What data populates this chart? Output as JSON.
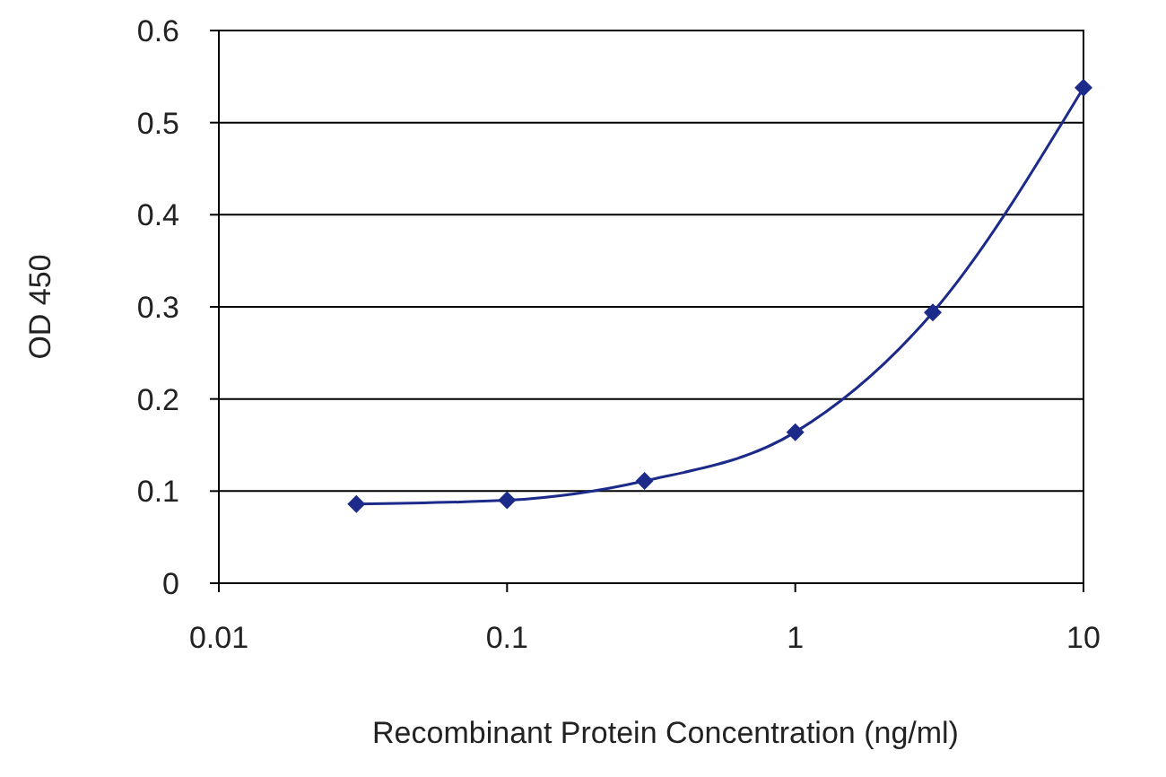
{
  "chart_data": {
    "type": "line",
    "xlabel": "Recombinant Protein Concentration (ng/ml)",
    "ylabel": "OD 450",
    "log": "x",
    "x": [
      0.03,
      0.1,
      0.3,
      1,
      3,
      10
    ],
    "series": [
      {
        "color": "#1c2a8a",
        "values": [
          0.086,
          0.09,
          0.111,
          0.164,
          0.294,
          0.538
        ]
      }
    ],
    "xlim": [
      0.01,
      10
    ],
    "xticks": [
      0.01,
      0.1,
      1,
      10
    ],
    "ylim": [
      0,
      0.6
    ],
    "yticks": [
      0,
      0.1,
      0.2,
      0.3,
      0.4,
      0.5,
      0.6
    ],
    "grid": "y",
    "marker": "diamond",
    "line_style": "solid"
  }
}
